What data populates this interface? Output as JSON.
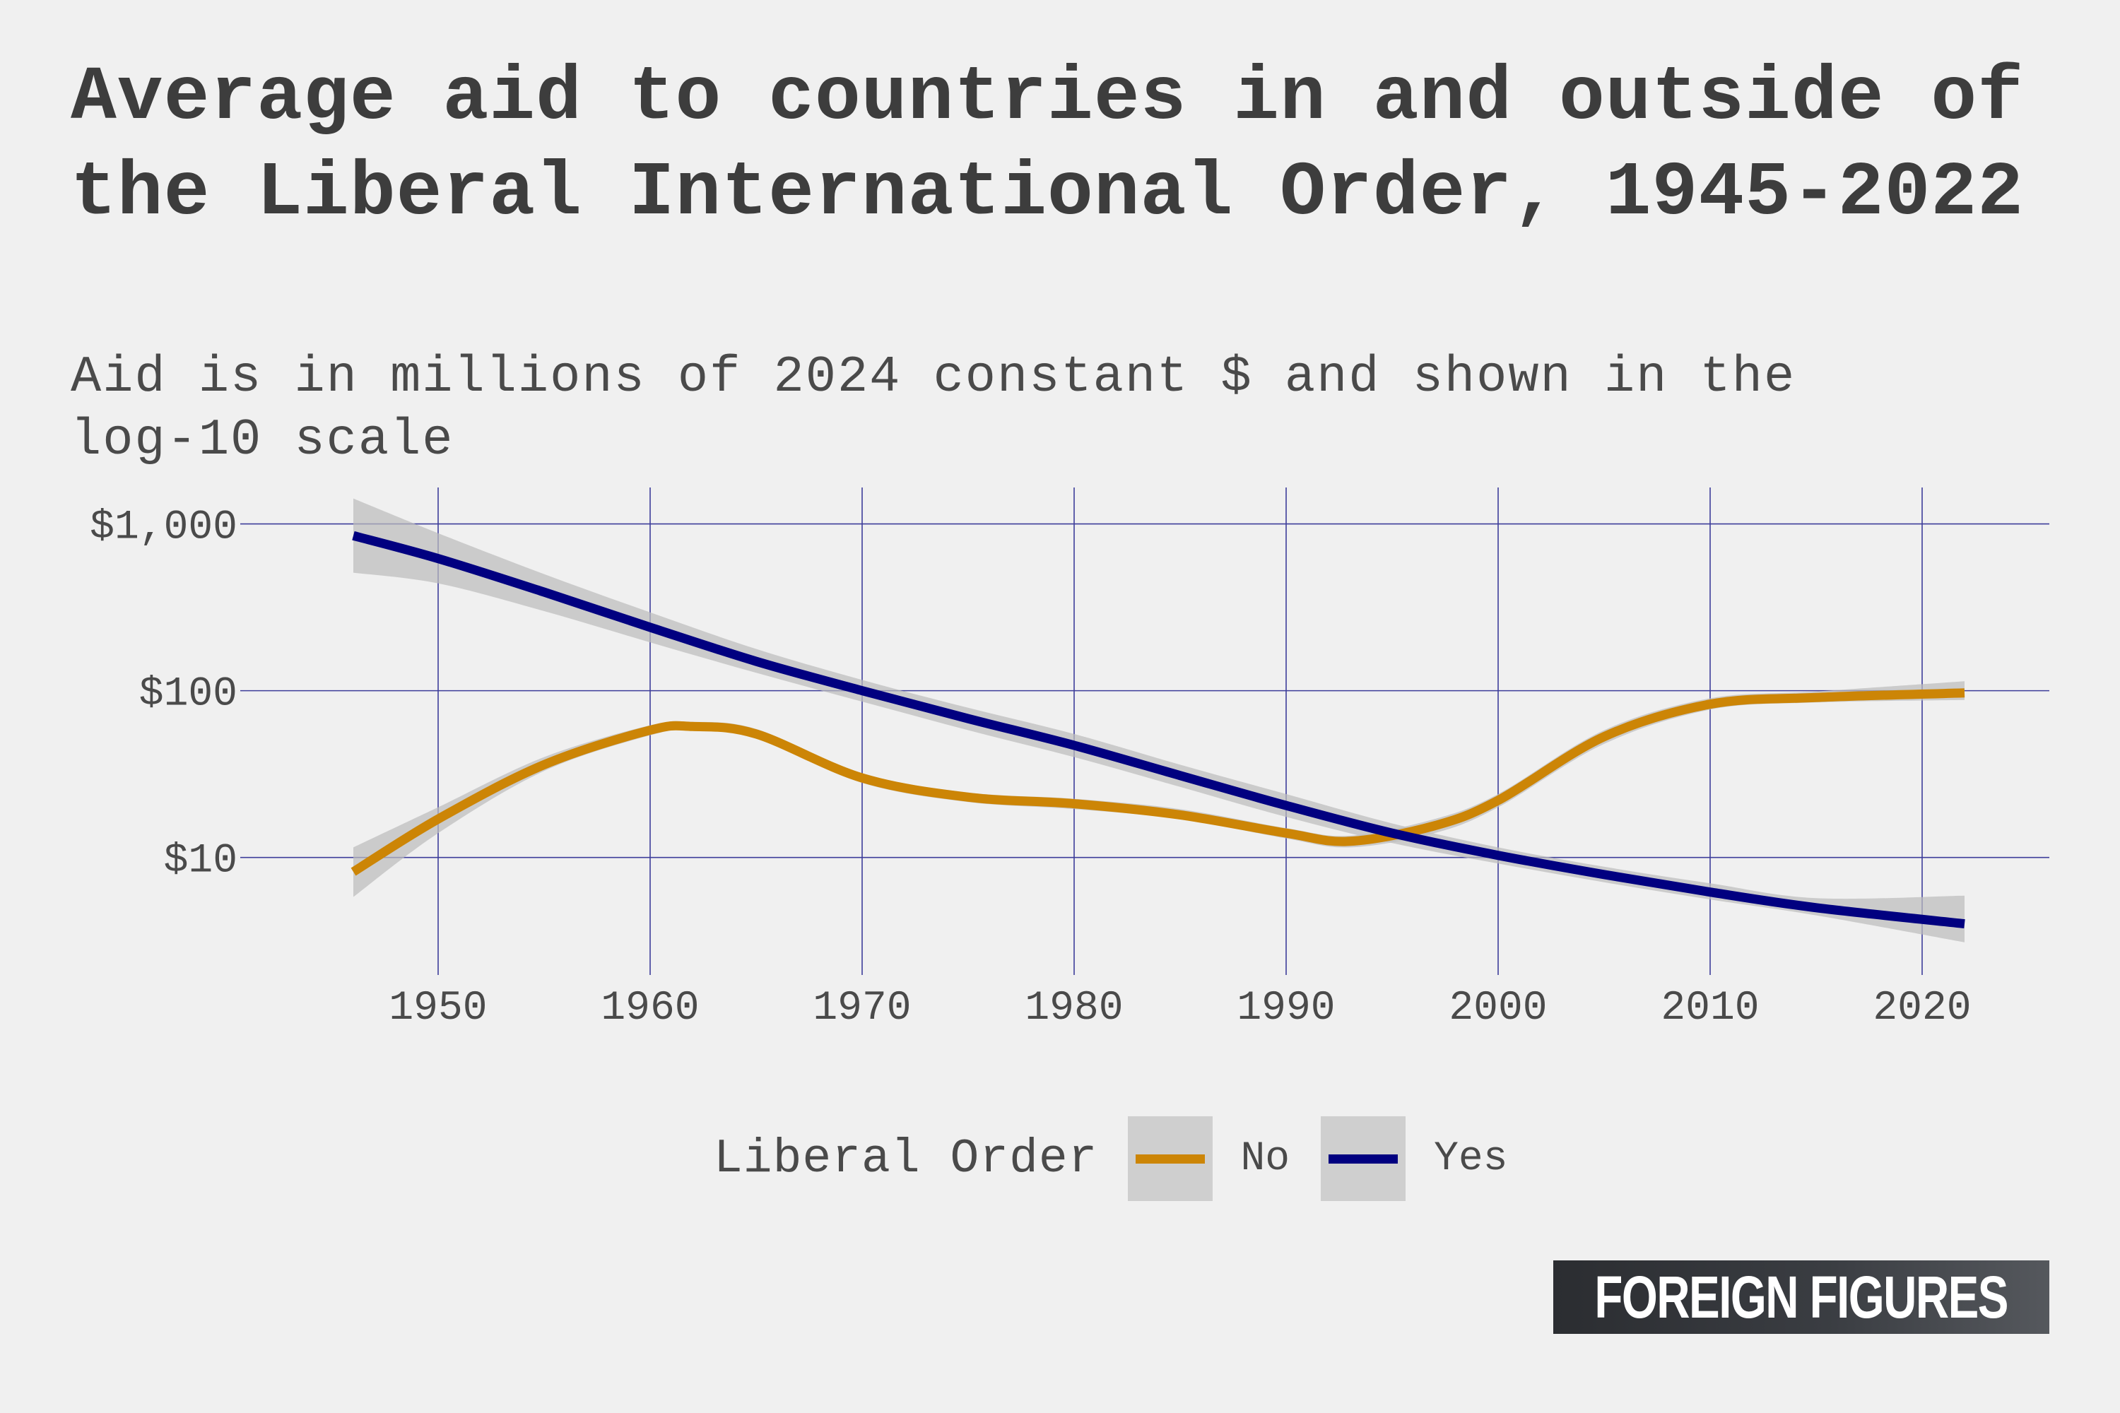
{
  "chart_data": {
    "type": "line",
    "title": "Average aid to countries in and outside of the Liberal International Order, 1945-2022",
    "subtitle": "Aid is in millions of 2024 constant $ and shown in the log-10 scale",
    "xlabel": "",
    "ylabel": "",
    "y_scale": "log10",
    "xlim": [
      1942,
      2026
    ],
    "ylim": [
      2.4,
      1500
    ],
    "x_ticks": [
      1950,
      1960,
      1970,
      1980,
      1990,
      2000,
      2010,
      2020
    ],
    "x_tick_labels": [
      "1950",
      "1960",
      "1970",
      "1980",
      "1990",
      "2000",
      "2010",
      "2020"
    ],
    "y_ticks": [
      10,
      100,
      1000
    ],
    "y_tick_labels": [
      "$10",
      "$100",
      "$1,000"
    ],
    "grid": true,
    "legend": {
      "title": "Liberal Order",
      "position": "bottom"
    },
    "series": [
      {
        "name": "No",
        "color": "#cc8506",
        "x": [
          1946,
          1950,
          1955,
          1960,
          1962,
          1965,
          1970,
          1975,
          1980,
          1985,
          1990,
          1993,
          1997,
          2000,
          2005,
          2010,
          2015,
          2022
        ],
        "y": [
          8.2,
          17,
          36,
          58,
          61,
          55,
          30,
          23,
          21,
          18,
          14,
          12.5,
          15.5,
          22,
          53,
          83,
          91,
          97
        ],
        "lower": [
          5.8,
          14,
          33,
          54,
          58,
          52,
          28,
          21.5,
          19.5,
          17,
          13,
          11.5,
          14,
          20,
          48,
          77,
          85,
          88
        ],
        "upper": [
          11.5,
          20,
          40,
          62,
          65,
          59,
          32,
          24.5,
          22.5,
          19.5,
          15,
          13.5,
          17,
          24,
          58,
          90,
          99,
          114
        ]
      },
      {
        "name": "Yes",
        "color": "#010080",
        "x": [
          1946,
          1950,
          1955,
          1960,
          1965,
          1970,
          1975,
          1980,
          1985,
          1990,
          1995,
          2000,
          2005,
          2010,
          2015,
          2022
        ],
        "y": [
          850,
          620,
          390,
          240,
          150,
          100,
          68,
          47,
          31,
          20.5,
          14,
          10.3,
          7.9,
          6.2,
          5.0,
          4.0
        ],
        "lower": [
          510,
          440,
          300,
          195,
          128,
          86,
          58,
          40,
          26.5,
          17.5,
          12.2,
          9.2,
          7.1,
          5.6,
          4.5,
          3.1
        ],
        "upper": [
          1420,
          880,
          500,
          295,
          178,
          116,
          79,
          55,
          36,
          24,
          16,
          11.5,
          8.8,
          7.0,
          5.7,
          5.9
        ]
      }
    ]
  },
  "logo": {
    "text": "FOREIGN FIGURES"
  }
}
